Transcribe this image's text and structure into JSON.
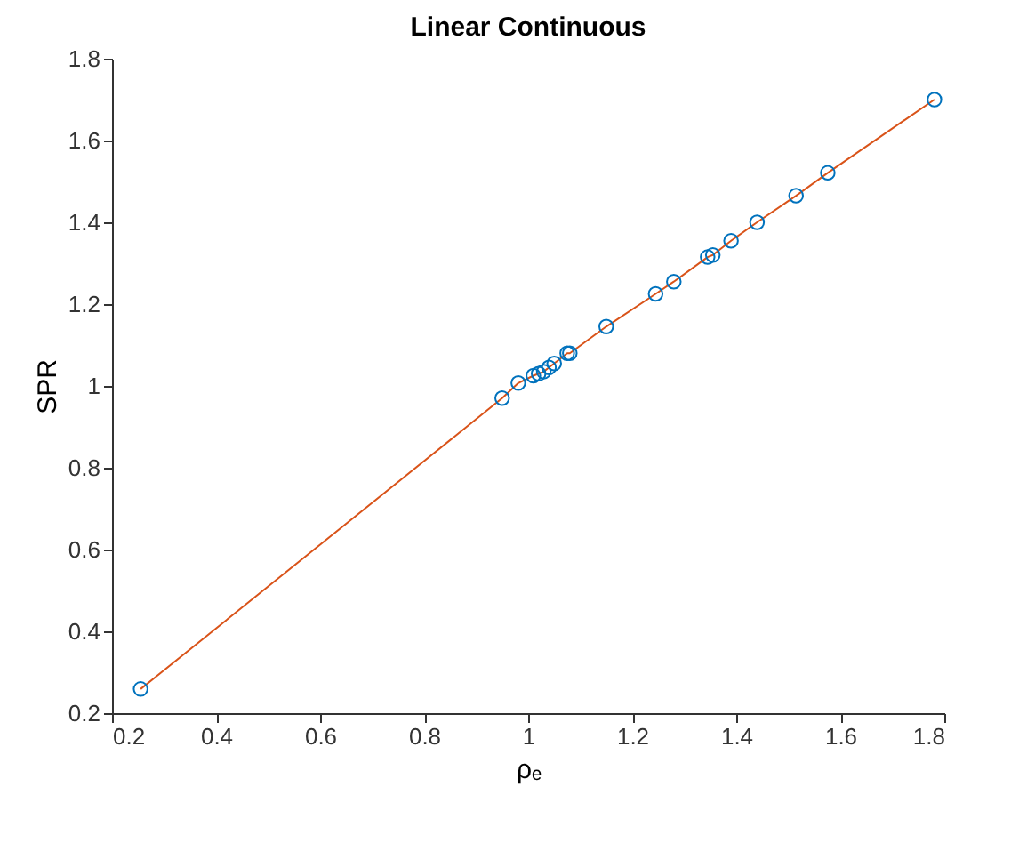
{
  "chart_data": {
    "type": "scatter",
    "title": "Linear Continuous",
    "xlabel": "ρₑ",
    "ylabel": "SPR",
    "xlim": [
      0.2,
      1.8
    ],
    "xticks": [
      0.2,
      0.4,
      0.6,
      0.8,
      {
        "value": 1,
        "label": "1"
      },
      1.2,
      1.4,
      1.6,
      1.8
    ],
    "ylim": [
      0.2,
      1.8
    ],
    "yticks": [
      0.2,
      0.4,
      0.6,
      0.8,
      {
        "value": 1,
        "label": "1"
      },
      1.2,
      1.4,
      1.6,
      1.8
    ],
    "grid": false,
    "marker": "circle",
    "series": [
      {
        "color": "#0072bd",
        "x": [
          0.255,
          0.95,
          0.981,
          1.01,
          1.02,
          1.03,
          1.04,
          1.05,
          1.075,
          1.08,
          1.15,
          1.245,
          1.28,
          1.345,
          1.355,
          1.39,
          1.44,
          1.515,
          1.576,
          1.781
        ],
        "values": [
          0.259,
          0.97,
          1.007,
          1.025,
          1.03,
          1.035,
          1.045,
          1.055,
          1.08,
          1.08,
          1.145,
          1.225,
          1.255,
          1.315,
          1.32,
          1.355,
          1.4,
          1.465,
          1.521,
          1.7
        ]
      },
      {
        "type": "line",
        "color": "#d95319",
        "line_style": "solid",
        "marker": "none",
        "x": [
          0.255,
          0.95,
          0.981,
          1.01,
          1.02,
          1.03,
          1.04,
          1.05,
          1.075,
          1.08,
          1.15,
          1.245,
          1.28,
          1.345,
          1.355,
          1.39,
          1.44,
          1.515,
          1.576,
          1.781
        ],
        "values": [
          0.259,
          0.97,
          1.007,
          1.025,
          1.03,
          1.035,
          1.045,
          1.055,
          1.08,
          1.08,
          1.145,
          1.225,
          1.255,
          1.315,
          1.32,
          1.355,
          1.4,
          1.465,
          1.521,
          1.7
        ]
      }
    ]
  }
}
